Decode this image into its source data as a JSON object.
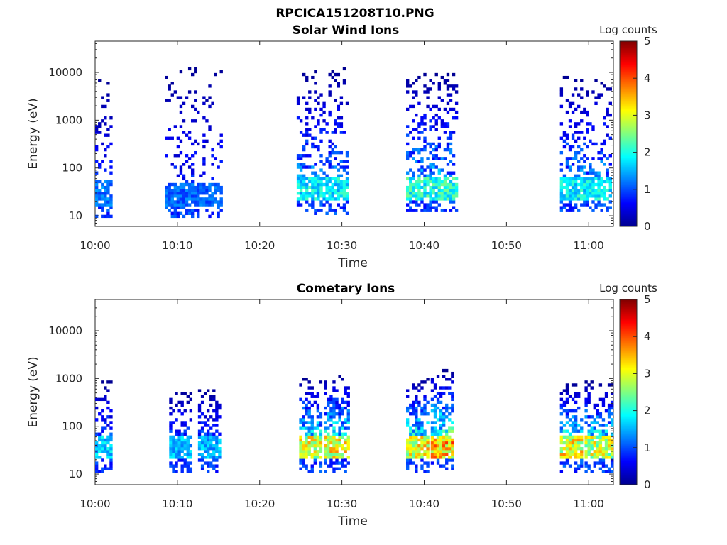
{
  "figure_title": "RPCICA151208T10.PNG",
  "colormap": [
    "#00008f",
    "#0000ff",
    "#0080ff",
    "#00ffff",
    "#80ff80",
    "#ffff00",
    "#ff8000",
    "#ff0000",
    "#800000"
  ],
  "chart_data": [
    {
      "type": "heatmap",
      "title": "Solar Wind Ions",
      "xlabel": "Time",
      "ylabel": "Energy (eV)",
      "x_unit": "minutes after 10:00",
      "xlim": [
        0,
        63
      ],
      "xticks": [
        0,
        10,
        20,
        30,
        40,
        50,
        60
      ],
      "xticklabels": [
        "10:00",
        "10:10",
        "10:20",
        "10:30",
        "10:40",
        "10:50",
        "11:00"
      ],
      "yscale": "log",
      "ylim": [
        6,
        45000
      ],
      "yticks": [
        10,
        100,
        1000,
        10000
      ],
      "yticklabels": [
        "10",
        "100",
        "1000",
        "10000"
      ],
      "colorbar": {
        "label": "Log counts",
        "min": 0,
        "max": 5,
        "ticks": [
          "0",
          "1",
          "2",
          "3",
          "4",
          "5"
        ]
      },
      "bursts": [
        {
          "t0": 0.0,
          "t1": 2.1,
          "core_e": 30,
          "core_counts": 1.2,
          "tail_top_e": 8000,
          "tail_density": 0.3
        },
        {
          "t0": 8.5,
          "t1": 15.2,
          "core_e": 28,
          "core_counts": 1.1,
          "tail_top_e": 15000,
          "tail_density": 0.18
        },
        {
          "t0": 24.5,
          "t1": 30.8,
          "core_e": 35,
          "core_counts": 1.8,
          "tail_top_e": 12000,
          "tail_density": 0.4
        },
        {
          "t0": 37.8,
          "t1": 44.0,
          "core_e": 38,
          "core_counts": 2.0,
          "tail_top_e": 10000,
          "tail_density": 0.42
        },
        {
          "t0": 56.5,
          "t1": 62.8,
          "core_e": 38,
          "core_counts": 1.8,
          "tail_top_e": 9000,
          "tail_density": 0.4
        }
      ]
    },
    {
      "type": "heatmap",
      "title": "Cometary Ions",
      "xlabel": "Time",
      "ylabel": "Energy (eV)",
      "x_unit": "minutes after 10:00",
      "xlim": [
        0,
        63
      ],
      "xticks": [
        0,
        10,
        20,
        30,
        40,
        50,
        60
      ],
      "xticklabels": [
        "10:00",
        "10:10",
        "10:20",
        "10:30",
        "10:40",
        "10:50",
        "11:00"
      ],
      "yscale": "log",
      "ylim": [
        6,
        45000
      ],
      "yticks": [
        10,
        100,
        1000,
        10000
      ],
      "yticklabels": [
        "10",
        "100",
        "1000",
        "10000"
      ],
      "colorbar": {
        "label": "Log counts",
        "min": 0,
        "max": 5,
        "ticks": [
          "0",
          "1",
          "2",
          "3",
          "4",
          "5"
        ]
      },
      "bursts": [
        {
          "t0": 0.0,
          "t1": 2.0,
          "core_e": 35,
          "core_counts": 1.6,
          "tail_top_e": 900,
          "tail_density": 0.55
        },
        {
          "t0": 9.0,
          "t1": 11.5,
          "core_e": 35,
          "core_counts": 1.5,
          "tail_top_e": 600,
          "tail_density": 0.55
        },
        {
          "t0": 12.5,
          "t1": 15.0,
          "core_e": 35,
          "core_counts": 1.5,
          "tail_top_e": 700,
          "tail_density": 0.55
        },
        {
          "t0": 24.8,
          "t1": 27.5,
          "core_e": 35,
          "core_counts": 2.9,
          "tail_top_e": 1000,
          "tail_density": 0.75
        },
        {
          "t0": 27.8,
          "t1": 30.8,
          "core_e": 35,
          "core_counts": 3.0,
          "tail_top_e": 1200,
          "tail_density": 0.75
        },
        {
          "t0": 37.8,
          "t1": 40.5,
          "core_e": 35,
          "core_counts": 3.0,
          "tail_top_e": 1000,
          "tail_density": 0.75
        },
        {
          "t0": 40.8,
          "t1": 43.5,
          "core_e": 38,
          "core_counts": 3.4,
          "tail_top_e": 1500,
          "tail_density": 0.75
        },
        {
          "t0": 56.5,
          "t1": 59.0,
          "core_e": 35,
          "core_counts": 3.0,
          "tail_top_e": 800,
          "tail_density": 0.7
        },
        {
          "t0": 59.5,
          "t1": 62.8,
          "core_e": 35,
          "core_counts": 2.8,
          "tail_top_e": 900,
          "tail_density": 0.7
        }
      ]
    }
  ]
}
